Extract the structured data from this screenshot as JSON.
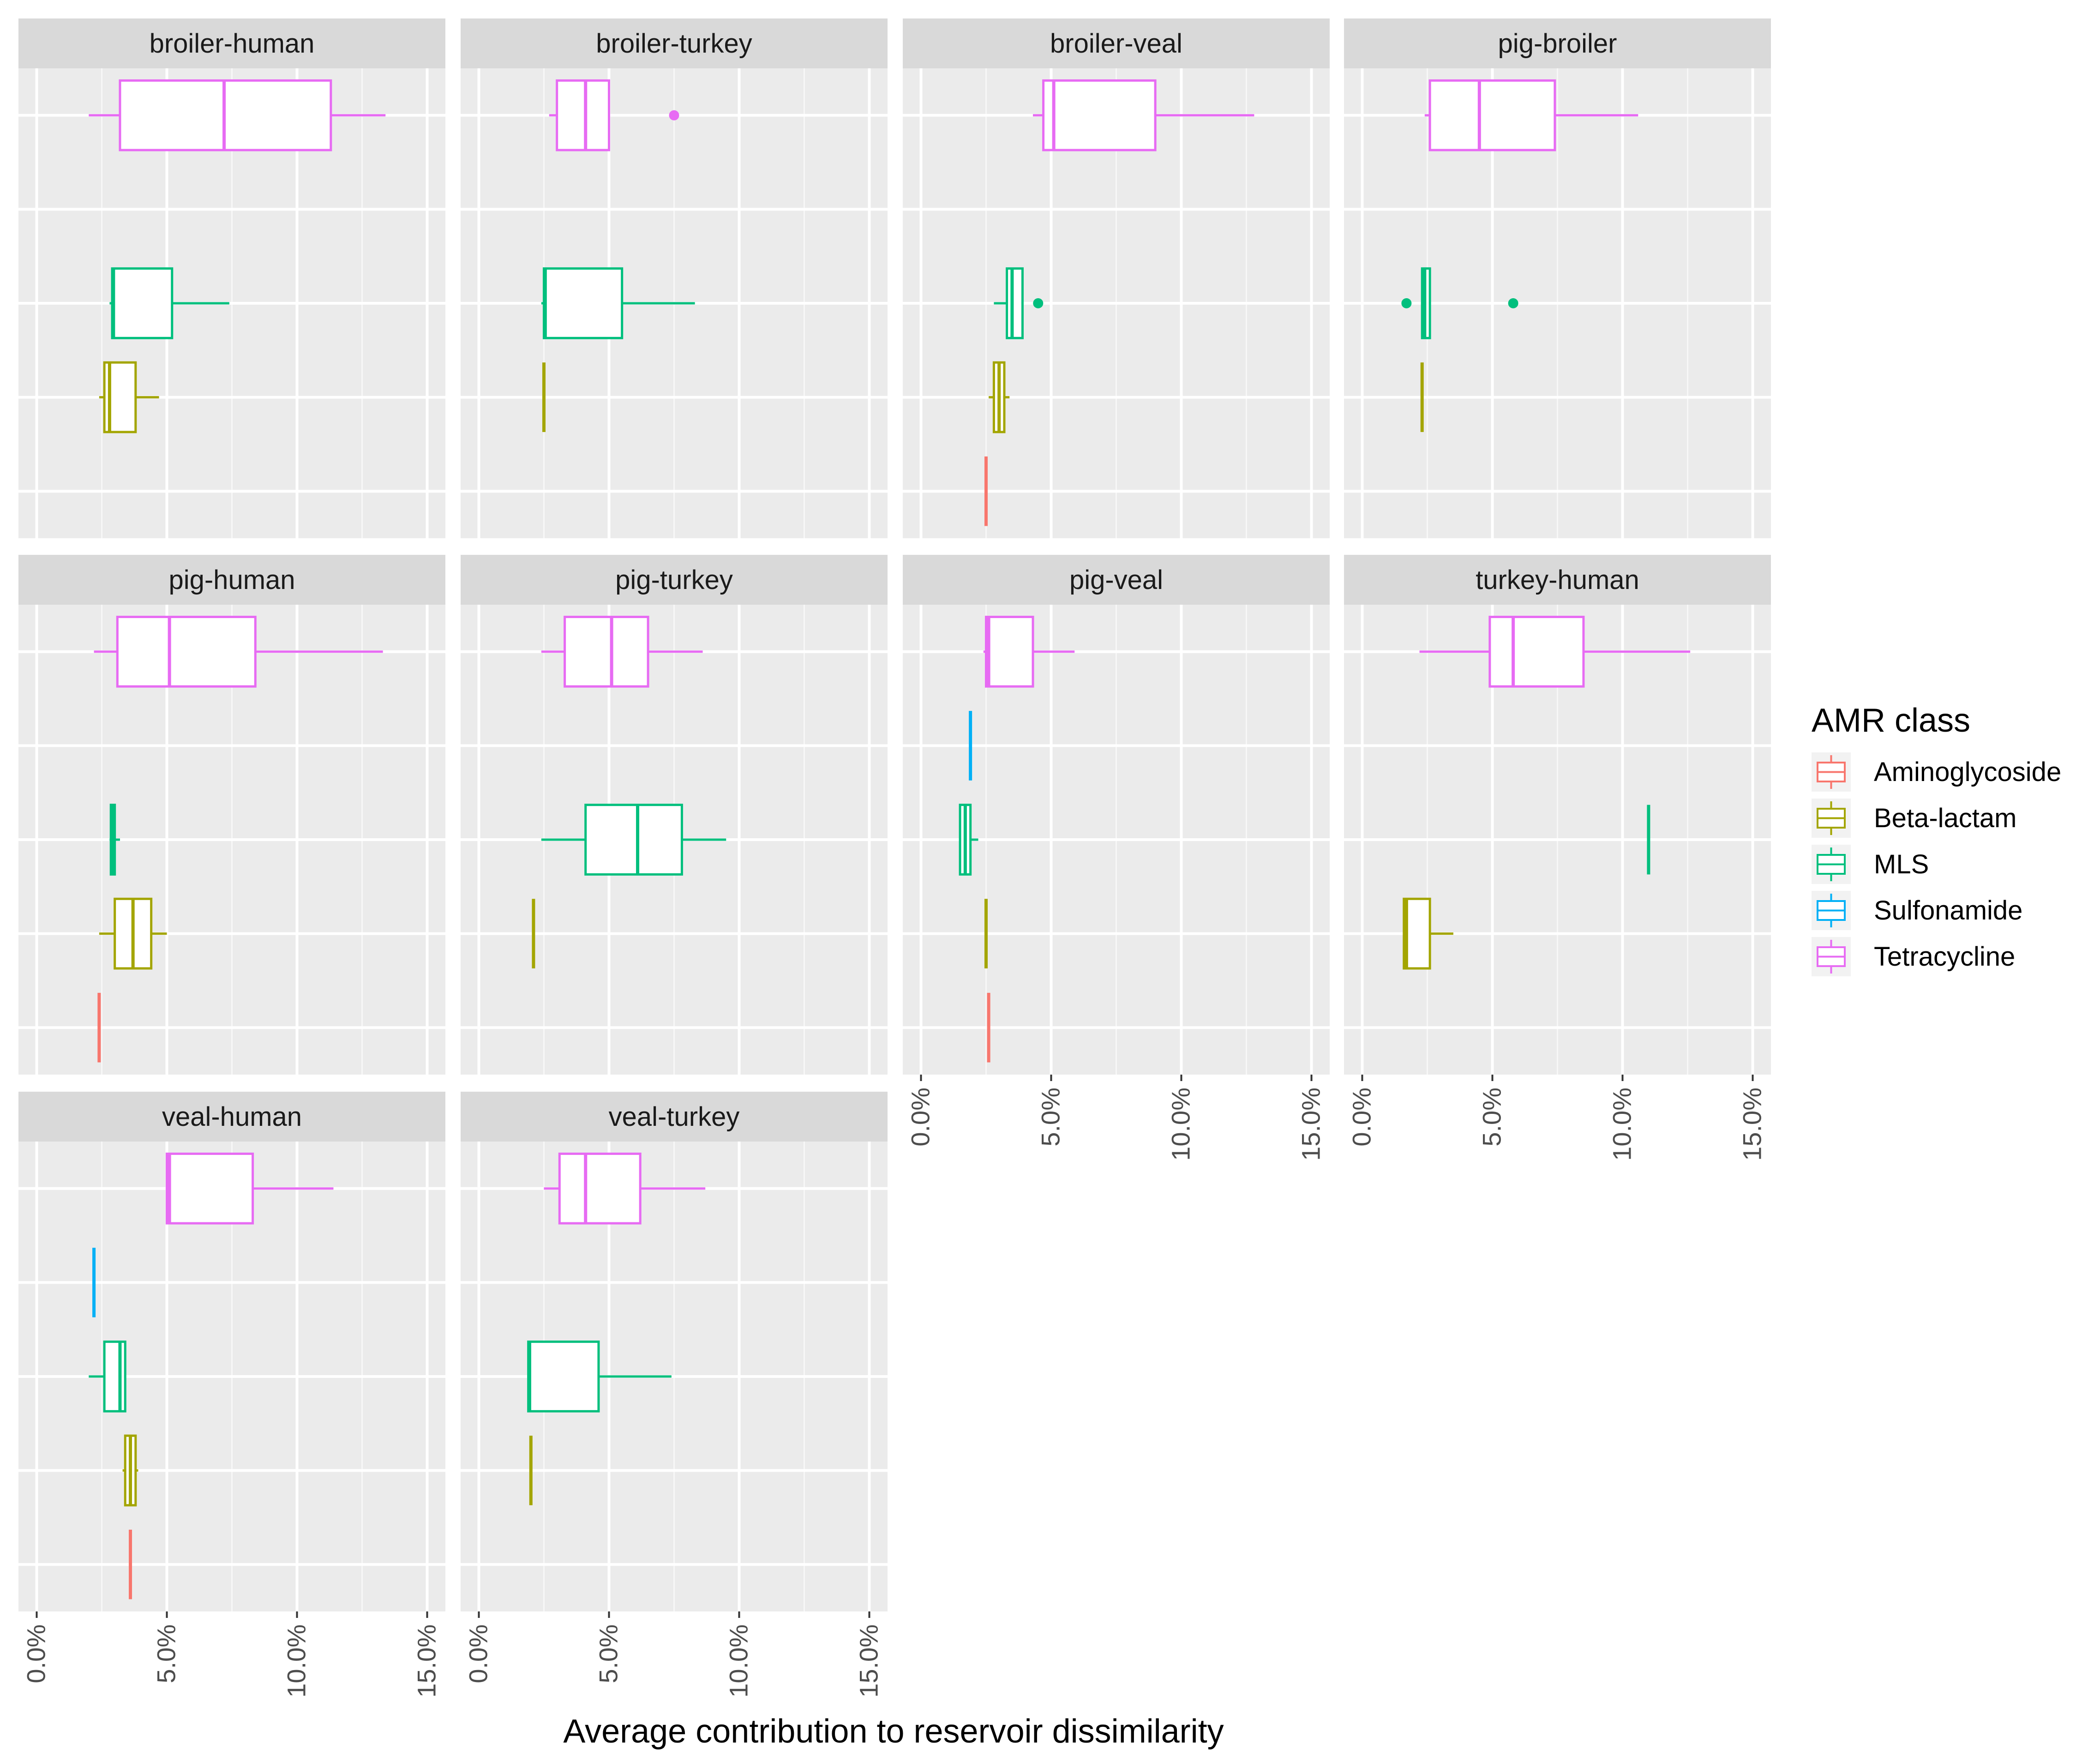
{
  "chart_data": {
    "type": "boxplot",
    "facet_layout": "4 columns, 3 rows, horizontal boxplots",
    "xlabel": "Average contribution to reservoir dissimilarity",
    "x_ticks": [
      "0.0%",
      "5.0%",
      "10.0%",
      "15.0%"
    ],
    "x_tick_values": [
      0,
      5,
      10,
      15
    ],
    "xlim": [
      -0.7,
      15.7
    ],
    "y_categories_top_to_bottom": [
      "Tetracycline",
      "Sulfonamide",
      "MLS",
      "Beta-lactam",
      "Aminoglycoside"
    ],
    "legend": {
      "title": "AMR class",
      "placement": "right",
      "entries": [
        {
          "name": "Aminoglycoside",
          "color": "#F8766D"
        },
        {
          "name": "Beta-lactam",
          "color": "#A3A500"
        },
        {
          "name": "MLS",
          "color": "#00BF7D"
        },
        {
          "name": "Sulfonamide",
          "color": "#00B0F6"
        },
        {
          "name": "Tetracycline",
          "color": "#E76BF3"
        }
      ]
    },
    "colors": {
      "Aminoglycoside": "#F8766D",
      "Beta-lactam": "#A3A500",
      "MLS": "#00BF7D",
      "Sulfonamide": "#00B0F6",
      "Tetracycline": "#E76BF3"
    },
    "panels": [
      {
        "title": "broiler-human",
        "boxes": [
          {
            "class": "Tetracycline",
            "min": 2.0,
            "q1": 3.2,
            "median": 7.2,
            "q3": 11.3,
            "max": 13.4,
            "outliers": []
          },
          {
            "class": "MLS",
            "min": 2.8,
            "q1": 2.9,
            "median": 2.95,
            "q3": 5.2,
            "max": 7.4,
            "outliers": []
          },
          {
            "class": "Beta-lactam",
            "min": 2.4,
            "q1": 2.6,
            "median": 2.8,
            "q3": 3.8,
            "max": 4.7,
            "outliers": []
          }
        ]
      },
      {
        "title": "broiler-turkey",
        "boxes": [
          {
            "class": "Tetracycline",
            "min": 2.7,
            "q1": 3.0,
            "median": 4.1,
            "q3": 5.0,
            "max": 5.0,
            "outliers": [
              7.5
            ]
          },
          {
            "class": "MLS",
            "min": 2.4,
            "q1": 2.5,
            "median": 2.55,
            "q3": 5.5,
            "max": 8.3,
            "outliers": []
          },
          {
            "class": "Beta-lactam",
            "min": 2.5,
            "q1": 2.5,
            "median": 2.5,
            "q3": 2.5,
            "max": 2.5,
            "outliers": []
          }
        ]
      },
      {
        "title": "broiler-veal",
        "boxes": [
          {
            "class": "Tetracycline",
            "min": 4.3,
            "q1": 4.7,
            "median": 5.1,
            "q3": 9.0,
            "max": 12.8,
            "outliers": []
          },
          {
            "class": "MLS",
            "min": 2.8,
            "q1": 3.3,
            "median": 3.5,
            "q3": 3.9,
            "max": 3.9,
            "outliers": [
              4.5
            ]
          },
          {
            "class": "Beta-lactam",
            "min": 2.6,
            "q1": 2.8,
            "median": 3.0,
            "q3": 3.2,
            "max": 3.4,
            "outliers": []
          },
          {
            "class": "Aminoglycoside",
            "min": 2.5,
            "q1": 2.5,
            "median": 2.5,
            "q3": 2.5,
            "max": 2.5,
            "outliers": []
          }
        ]
      },
      {
        "title": "pig-broiler",
        "boxes": [
          {
            "class": "Tetracycline",
            "min": 2.4,
            "q1": 2.6,
            "median": 4.5,
            "q3": 7.4,
            "max": 10.6,
            "outliers": []
          },
          {
            "class": "MLS",
            "min": 2.3,
            "q1": 2.3,
            "median": 2.4,
            "q3": 2.6,
            "max": 2.6,
            "outliers": [
              1.7,
              5.8
            ]
          },
          {
            "class": "Beta-lactam",
            "min": 2.3,
            "q1": 2.3,
            "median": 2.3,
            "q3": 2.3,
            "max": 2.3,
            "outliers": []
          }
        ]
      },
      {
        "title": "pig-human",
        "boxes": [
          {
            "class": "Tetracycline",
            "min": 2.2,
            "q1": 3.1,
            "median": 5.1,
            "q3": 8.4,
            "max": 13.3,
            "outliers": []
          },
          {
            "class": "MLS",
            "min": 2.8,
            "q1": 2.85,
            "median": 2.9,
            "q3": 3.0,
            "max": 3.2,
            "outliers": []
          },
          {
            "class": "Beta-lactam",
            "min": 2.4,
            "q1": 3.0,
            "median": 3.7,
            "q3": 4.4,
            "max": 5.0,
            "outliers": []
          },
          {
            "class": "Aminoglycoside",
            "min": 2.4,
            "q1": 2.4,
            "median": 2.4,
            "q3": 2.4,
            "max": 2.4,
            "outliers": []
          }
        ]
      },
      {
        "title": "pig-turkey",
        "boxes": [
          {
            "class": "Tetracycline",
            "min": 2.4,
            "q1": 3.3,
            "median": 5.1,
            "q3": 6.5,
            "max": 8.6,
            "outliers": []
          },
          {
            "class": "MLS",
            "min": 2.4,
            "q1": 4.1,
            "median": 6.1,
            "q3": 7.8,
            "max": 9.5,
            "outliers": []
          },
          {
            "class": "Beta-lactam",
            "min": 2.1,
            "q1": 2.1,
            "median": 2.1,
            "q3": 2.1,
            "max": 2.1,
            "outliers": []
          }
        ]
      },
      {
        "title": "pig-veal",
        "boxes": [
          {
            "class": "Tetracycline",
            "min": 2.4,
            "q1": 2.5,
            "median": 2.6,
            "q3": 4.3,
            "max": 5.9,
            "outliers": []
          },
          {
            "class": "Sulfonamide",
            "min": 1.9,
            "q1": 1.9,
            "median": 1.9,
            "q3": 1.9,
            "max": 1.9,
            "outliers": []
          },
          {
            "class": "MLS",
            "min": 1.5,
            "q1": 1.5,
            "median": 1.7,
            "q3": 1.9,
            "max": 2.2,
            "outliers": []
          },
          {
            "class": "Beta-lactam",
            "min": 2.5,
            "q1": 2.5,
            "median": 2.5,
            "q3": 2.5,
            "max": 2.5,
            "outliers": []
          },
          {
            "class": "Aminoglycoside",
            "min": 2.6,
            "q1": 2.6,
            "median": 2.6,
            "q3": 2.6,
            "max": 2.6,
            "outliers": []
          }
        ]
      },
      {
        "title": "turkey-human",
        "boxes": [
          {
            "class": "Tetracycline",
            "min": 2.2,
            "q1": 4.9,
            "median": 5.8,
            "q3": 8.5,
            "max": 12.6,
            "outliers": []
          },
          {
            "class": "MLS",
            "min": 11.0,
            "q1": 11.0,
            "median": 11.0,
            "q3": 11.0,
            "max": 11.0,
            "outliers": []
          },
          {
            "class": "Beta-lactam",
            "min": 1.6,
            "q1": 1.6,
            "median": 1.7,
            "q3": 2.6,
            "max": 3.5,
            "outliers": []
          }
        ]
      },
      {
        "title": "veal-human",
        "boxes": [
          {
            "class": "Tetracycline",
            "min": 5.0,
            "q1": 5.0,
            "median": 5.1,
            "q3": 8.3,
            "max": 11.4,
            "outliers": []
          },
          {
            "class": "Sulfonamide",
            "min": 2.2,
            "q1": 2.2,
            "median": 2.2,
            "q3": 2.2,
            "max": 2.2,
            "outliers": []
          },
          {
            "class": "MLS",
            "min": 2.0,
            "q1": 2.6,
            "median": 3.2,
            "q3": 3.4,
            "max": 3.4,
            "outliers": []
          },
          {
            "class": "Beta-lactam",
            "min": 3.3,
            "q1": 3.4,
            "median": 3.6,
            "q3": 3.8,
            "max": 3.9,
            "outliers": []
          },
          {
            "class": "Aminoglycoside",
            "min": 3.6,
            "q1": 3.6,
            "median": 3.6,
            "q3": 3.6,
            "max": 3.6,
            "outliers": []
          }
        ]
      },
      {
        "title": "veal-turkey",
        "boxes": [
          {
            "class": "Tetracycline",
            "min": 2.5,
            "q1": 3.1,
            "median": 4.1,
            "q3": 6.2,
            "max": 8.7,
            "outliers": []
          },
          {
            "class": "MLS",
            "min": 1.9,
            "q1": 1.9,
            "median": 1.95,
            "q3": 4.6,
            "max": 7.4,
            "outliers": []
          },
          {
            "class": "Beta-lactam",
            "min": 2.0,
            "q1": 2.0,
            "median": 2.0,
            "q3": 2.0,
            "max": 2.0,
            "outliers": []
          }
        ]
      }
    ]
  }
}
